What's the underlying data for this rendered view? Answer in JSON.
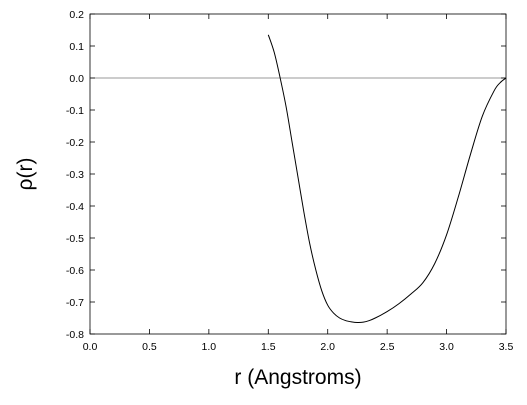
{
  "chart_data": {
    "type": "line",
    "title": "",
    "xlabel": "r (Angstroms)",
    "ylabel": "ρ(r)",
    "xlim": [
      0.0,
      3.5
    ],
    "ylim": [
      -0.8,
      0.2
    ],
    "grid": false,
    "x_ticks": [
      "0.0",
      "0.5",
      "1.0",
      "1.5",
      "2.0",
      "2.5",
      "3.0",
      "3.5"
    ],
    "y_ticks": [
      "0.2",
      "0.1",
      "0.0",
      "-0.1",
      "-0.2",
      "-0.3",
      "-0.4",
      "-0.5",
      "-0.6",
      "-0.7",
      "-0.8"
    ],
    "reference_line_y": 0.0,
    "series": [
      {
        "x": [
          1.5,
          1.55,
          1.6,
          1.65,
          1.7,
          1.75,
          1.8,
          1.85,
          1.9,
          1.95,
          2.0,
          2.05,
          2.1,
          2.15,
          2.2,
          2.25,
          2.3,
          2.35,
          2.4,
          2.5,
          2.6,
          2.7,
          2.8,
          2.9,
          3.0,
          3.1,
          3.2,
          3.3,
          3.4,
          3.45,
          3.5
        ],
        "y": [
          0.135,
          0.08,
          0.0,
          -0.09,
          -0.2,
          -0.31,
          -0.42,
          -0.52,
          -0.6,
          -0.665,
          -0.71,
          -0.735,
          -0.75,
          -0.758,
          -0.762,
          -0.764,
          -0.763,
          -0.758,
          -0.75,
          -0.73,
          -0.705,
          -0.675,
          -0.64,
          -0.58,
          -0.49,
          -0.37,
          -0.24,
          -0.12,
          -0.04,
          -0.015,
          0.0
        ]
      }
    ]
  }
}
